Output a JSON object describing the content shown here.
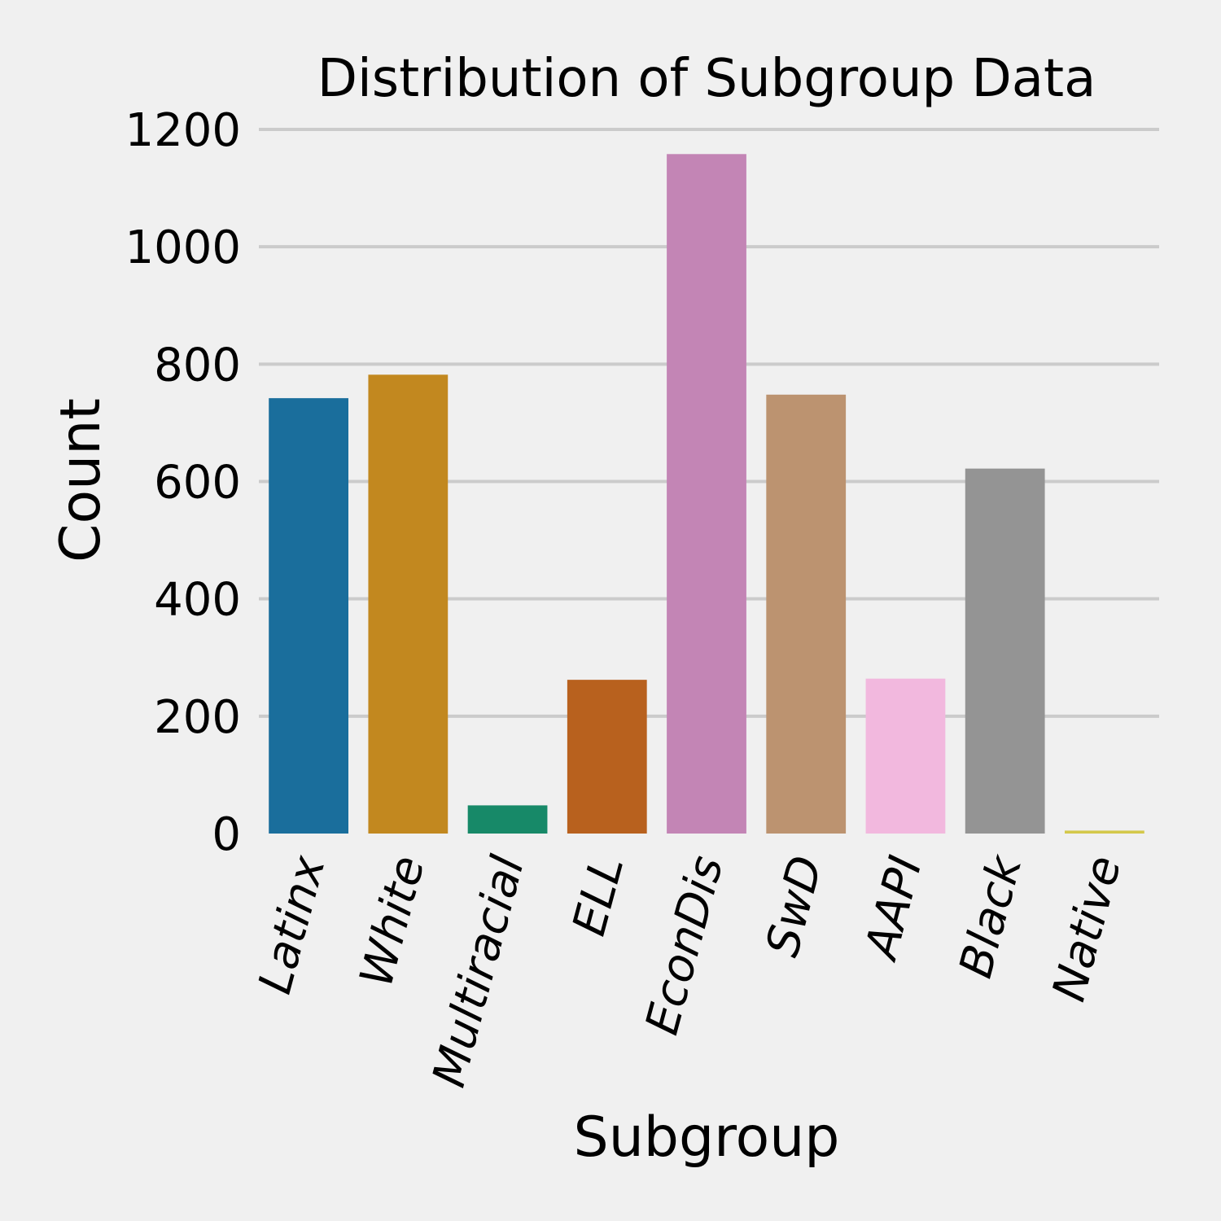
{
  "chart_data": {
    "type": "bar",
    "title": "Distribution of Subgroup Data",
    "xlabel": "Subgroup",
    "ylabel": "Count",
    "categories": [
      "Latinx",
      "White",
      "Multiracial",
      "ELL",
      "EconDis",
      "SwD",
      "AAPI",
      "Black",
      "Native"
    ],
    "values": [
      742,
      782,
      48,
      262,
      1158,
      748,
      264,
      622,
      5
    ],
    "colors": [
      "#1a6e9c",
      "#c2881f",
      "#178968",
      "#b8611e",
      "#c385b5",
      "#bc9370",
      "#f2b8de",
      "#949494",
      "#d4c84b"
    ],
    "yticks": [
      0,
      200,
      400,
      600,
      800,
      1000,
      1200
    ],
    "ylim": [
      0,
      1200
    ],
    "grid": "horizontal",
    "legend": "none",
    "background": "#f0f0f0"
  }
}
